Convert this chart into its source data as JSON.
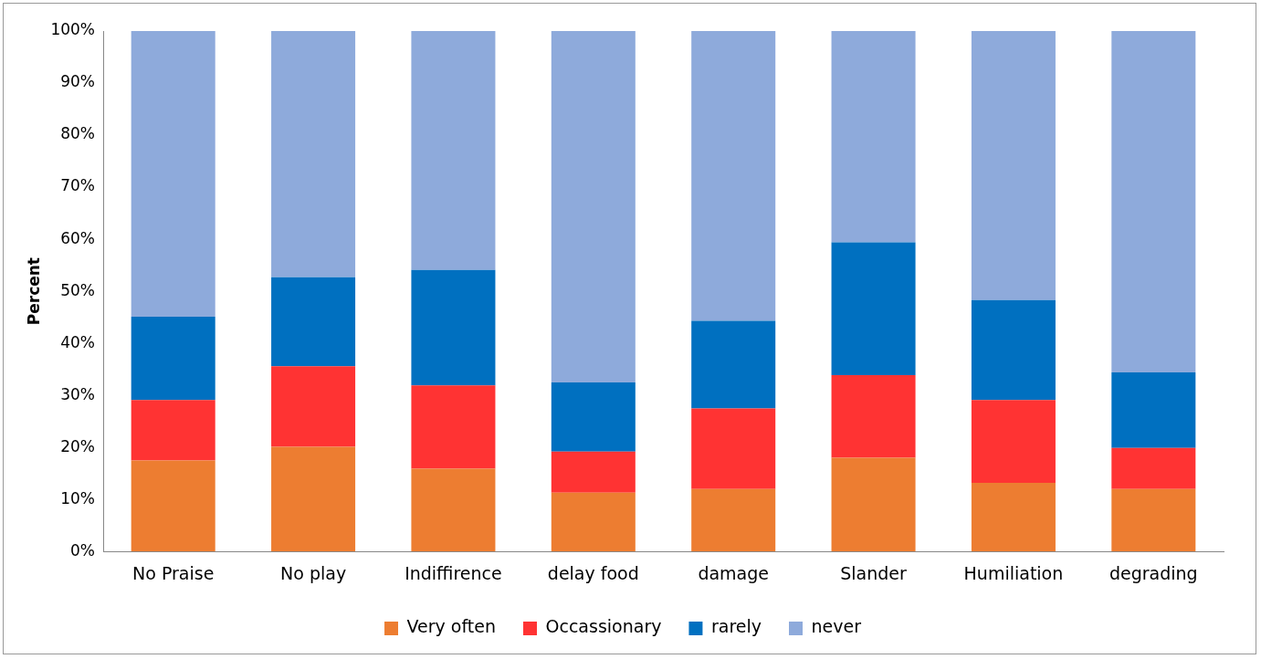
{
  "chart_data": {
    "type": "bar",
    "stacked": true,
    "ylabel": "Percent",
    "categories": [
      "No Praise",
      "No play",
      "Indiffirence",
      "delay food",
      "damage",
      "Slander",
      "Humiliation",
      "degrading"
    ],
    "series": [
      {
        "name": "Very often",
        "color": "#ed7d31",
        "values": [
          17.5,
          20.1,
          15.9,
          11.3,
          12.0,
          18.0,
          13.2,
          12.0
        ]
      },
      {
        "name": "Occassionary",
        "color": "#ff3333",
        "values": [
          11.6,
          15.5,
          16.0,
          7.9,
          15.5,
          15.9,
          15.9,
          7.9
        ]
      },
      {
        "name": "rarely",
        "color": "#0070c0",
        "values": [
          16.0,
          17.1,
          22.2,
          13.3,
          16.8,
          25.5,
          19.2,
          14.5
        ]
      },
      {
        "name": "never",
        "color": "#8eaadb",
        "values": [
          54.9,
          47.3,
          45.9,
          67.5,
          55.7,
          40.6,
          51.7,
          65.6
        ]
      }
    ],
    "ylim": [
      0,
      100
    ],
    "yticks": [
      {
        "value": 0,
        "label": "0%"
      },
      {
        "value": 10,
        "label": "10%"
      },
      {
        "value": 20,
        "label": "20%"
      },
      {
        "value": 30,
        "label": "30%"
      },
      {
        "value": 40,
        "label": "40%"
      },
      {
        "value": 50,
        "label": "50%"
      },
      {
        "value": 60,
        "label": "60%"
      },
      {
        "value": 70,
        "label": "70%"
      },
      {
        "value": 80,
        "label": "80%"
      },
      {
        "value": 90,
        "label": "90%"
      },
      {
        "value": 100,
        "label": "100%"
      }
    ],
    "grid": false,
    "legend": "bottom"
  }
}
